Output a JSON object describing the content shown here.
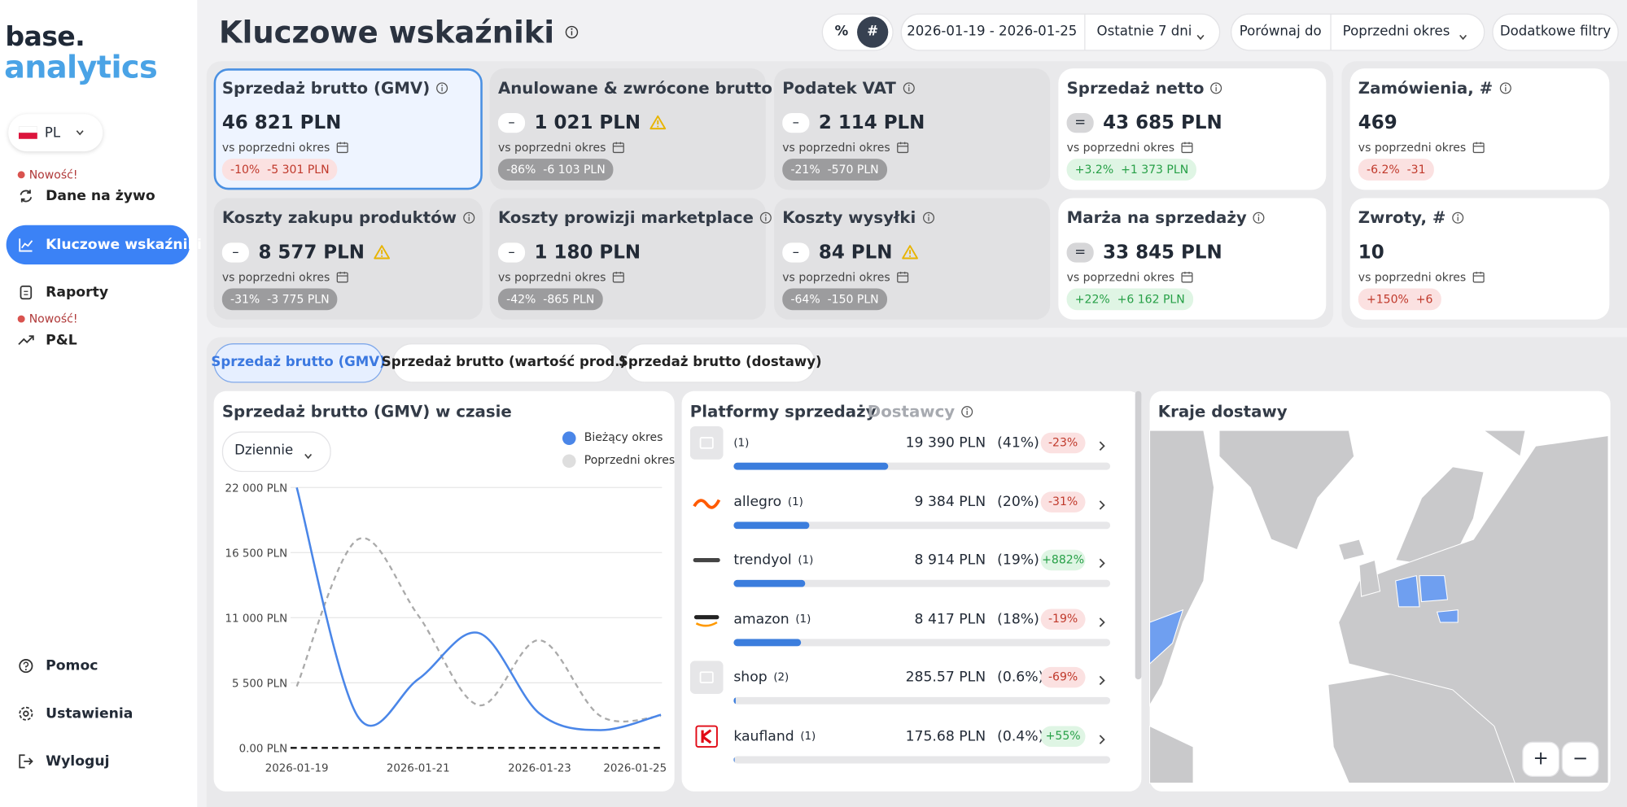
{
  "sidebar": {
    "logo_top": "base.",
    "logo_bottom": "analytics",
    "country": "PL",
    "nav": [
      {
        "badge": "Nowość!",
        "label": "Dane na żywo"
      },
      {
        "label": "Kluczowe wskaźniki"
      },
      {
        "label": "Raporty"
      },
      {
        "badge": "Nowość!",
        "label": "P&L"
      }
    ],
    "footer": [
      "Pomoc",
      "Ustawienia",
      "Wyloguj"
    ]
  },
  "header": {
    "title": "Kluczowe wskaźniki",
    "toggles": [
      "%",
      "#"
    ],
    "date_range": "2026-01-19 - 2026-01-25",
    "preset": "Ostatnie 7 dni",
    "compare_label": "Porównaj do",
    "compare_value": "Poprzedni okres",
    "filters": "Dodatkowe filtry"
  },
  "kpis": [
    {
      "title": "Sprzedaż brutto (GMV)",
      "value": "46 821 PLN",
      "compare": "vs poprzedni okres",
      "change_pct": "-10%",
      "change_abs": "-5 301 PLN"
    },
    {
      "title": "Anulowane & zwrócone brutto",
      "badge": "–",
      "value": "1 021 PLN",
      "compare": "vs poprzedni okres",
      "change_pct": "-86%",
      "change_abs": "-6 103 PLN"
    },
    {
      "title": "Podatek VAT",
      "badge": "–",
      "value": "2 114 PLN",
      "compare": "vs poprzedni okres",
      "change_pct": "-21%",
      "change_abs": "-570 PLN"
    },
    {
      "title": "Sprzedaż netto",
      "badge": "=",
      "value": "43 685 PLN",
      "compare": "vs poprzedni okres",
      "change_pct": "+3.2%",
      "change_abs": "+1 373 PLN"
    },
    {
      "title": "Zamówienia, #",
      "value": "469",
      "compare": "vs poprzedni okres",
      "change_pct": "-6.2%",
      "change_abs": "-31"
    },
    {
      "title": "Koszty zakupu produktów",
      "badge": "–",
      "value": "8 577 PLN",
      "compare": "vs poprzedni okres",
      "change_pct": "-31%",
      "change_abs": "-3 775 PLN"
    },
    {
      "title": "Koszty prowizji marketplace",
      "badge": "–",
      "value": "1 180 PLN",
      "compare": "vs poprzedni okres",
      "change_pct": "-42%",
      "change_abs": "-865 PLN"
    },
    {
      "title": "Koszty wysyłki",
      "badge": "–",
      "value": "84 PLN",
      "compare": "vs poprzedni okres",
      "change_pct": "-64%",
      "change_abs": "-150 PLN"
    },
    {
      "title": "Marża na sprzedaży",
      "badge": "=",
      "value": "33 845 PLN",
      "compare": "vs poprzedni okres",
      "change_pct": "+22%",
      "change_abs": "+6 162 PLN"
    },
    {
      "title": "Zwroty, #",
      "value": "10",
      "compare": "vs poprzedni okres",
      "change_pct": "+150%",
      "change_abs": "+6"
    }
  ],
  "tabs": [
    "Sprzedaż brutto (GMV)",
    "Sprzedaż brutto (wartość prod.)",
    "Sprzedaż brutto (dostawy)"
  ],
  "chart_data": {
    "type": "line",
    "title": "Sprzedaż brutto (GMV) w czasie",
    "interval": "Dziennie",
    "x": [
      "2026-01-19",
      "2026-01-20",
      "2026-01-21",
      "2026-01-22",
      "2026-01-23",
      "2026-01-24",
      "2026-01-25"
    ],
    "xticks": [
      "2026-01-19",
      "2026-01-21",
      "2026-01-23",
      "2026-01-25"
    ],
    "ylim": [
      0,
      22000
    ],
    "yticks": [
      {
        "value": 0,
        "label": "0.00 PLN"
      },
      {
        "value": 5500,
        "label": "5 500 PLN"
      },
      {
        "value": 11000,
        "label": "11 000 PLN"
      },
      {
        "value": 16500,
        "label": "16 500 PLN"
      },
      {
        "value": 22000,
        "label": "22 000 PLN"
      }
    ],
    "grid": true,
    "series": [
      {
        "name": "Bieżący okres",
        "color": "#4a86e8",
        "values": [
          22000,
          2700,
          5800,
          9700,
          2900,
          1500,
          2800
        ]
      },
      {
        "name": "Poprzedni okres",
        "color": "#aaaaaa",
        "values": [
          5200,
          17600,
          11200,
          3600,
          9100,
          2700,
          2700
        ]
      }
    ]
  },
  "platforms": {
    "title": "Platformy sprzedaży",
    "alt_title": "Dostawcy",
    "rows": [
      {
        "count": "(1)",
        "amount": "19 390 PLN",
        "share": 41,
        "share_label": "(41%)",
        "change": "-23%"
      },
      {
        "name": "allegro",
        "count": "(1)",
        "amount": "9 384 PLN",
        "share": 20,
        "share_label": "(20%)",
        "change": "-31%"
      },
      {
        "name": "trendyol",
        "count": "(1)",
        "amount": "8 914 PLN",
        "share": 19,
        "share_label": "(19%)",
        "change": "+882%"
      },
      {
        "name": "amazon",
        "count": "(1)",
        "amount": "8 417 PLN",
        "share": 18,
        "share_label": "(18%)",
        "change": "-19%"
      },
      {
        "name": "shop",
        "count": "(2)",
        "amount": "285.57 PLN",
        "share": 0.6,
        "share_label": "(0.6%)",
        "change": "-69%"
      },
      {
        "name": "kaufland",
        "count": "(1)",
        "amount": "175.68 PLN",
        "share": 0.4,
        "share_label": "(0.4%)",
        "change": "+55%"
      }
    ]
  },
  "map": {
    "title": "Kraje dostawy",
    "zoom_in": "+",
    "zoom_out": "−"
  }
}
